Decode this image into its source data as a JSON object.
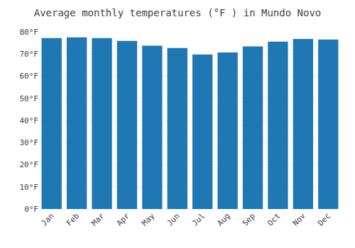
{
  "chart_data": {
    "type": "bar",
    "title": "Average monthly temperatures (°F ) in Mundo Novo",
    "categories": [
      "Jan",
      "Feb",
      "Mar",
      "Apr",
      "May",
      "Jun",
      "Jul",
      "Aug",
      "Sep",
      "Oct",
      "Nov",
      "Dec"
    ],
    "values": [
      77.2,
      77.5,
      77.2,
      75.9,
      73.8,
      72.7,
      69.8,
      70.7,
      73.4,
      75.6,
      76.8,
      76.6
    ],
    "ylim": [
      0,
      80
    ],
    "yticks": [
      {
        "value": 0,
        "label": "0°F"
      },
      {
        "value": 10,
        "label": "10°F"
      },
      {
        "value": 20,
        "label": "20°F"
      },
      {
        "value": 30,
        "label": "30°F"
      },
      {
        "value": 40,
        "label": "40°F"
      },
      {
        "value": 50,
        "label": "50°F"
      },
      {
        "value": 60,
        "label": "60°F"
      },
      {
        "value": 70,
        "label": "70°F"
      },
      {
        "value": 80,
        "label": "80°F"
      }
    ],
    "grid": true
  }
}
